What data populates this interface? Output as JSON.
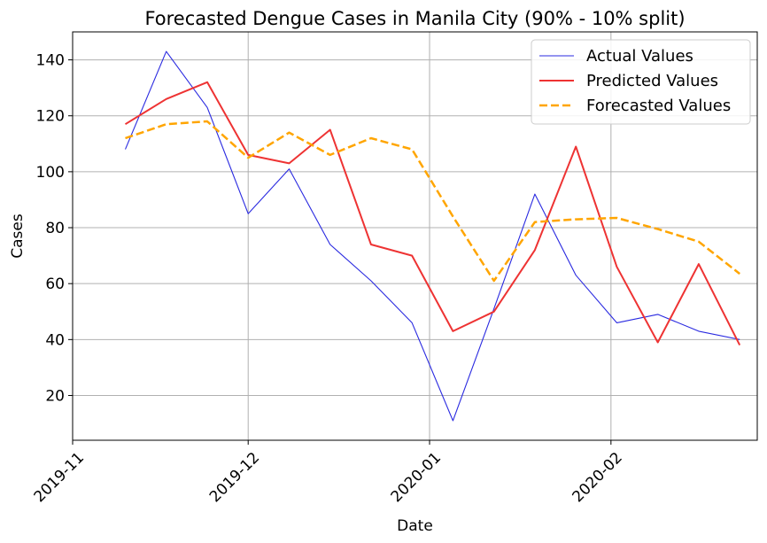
{
  "chart_data": {
    "type": "line",
    "title": "Forecasted Dengue Cases in Manila City (90% - 10% split)",
    "xlabel": "Date",
    "ylabel": "Cases",
    "x_range": [
      "2019-11-01",
      "2020-02-26"
    ],
    "ylim": [
      4,
      150
    ],
    "grid": true,
    "legend_position": "top-right",
    "x_ticks": [
      {
        "date": "2019-11-01",
        "label": "2019-11"
      },
      {
        "date": "2019-12-01",
        "label": "2019-12"
      },
      {
        "date": "2020-01-01",
        "label": "2020-01"
      },
      {
        "date": "2020-02-01",
        "label": "2020-02"
      }
    ],
    "y_ticks": [
      20,
      40,
      60,
      80,
      100,
      120,
      140
    ],
    "x": [
      "2019-11-10",
      "2019-11-17",
      "2019-11-24",
      "2019-12-01",
      "2019-12-08",
      "2019-12-15",
      "2019-12-22",
      "2019-12-29",
      "2020-01-05",
      "2020-01-12",
      "2020-01-19",
      "2020-01-26",
      "2020-02-02",
      "2020-02-09",
      "2020-02-16",
      "2020-02-23"
    ],
    "series": [
      {
        "name": "Actual Values",
        "color": "#2a2ae0",
        "style": "solid",
        "values": [
          108,
          143,
          123,
          85,
          101,
          74,
          61,
          46,
          11,
          51,
          92,
          63,
          46,
          49,
          43,
          40
        ]
      },
      {
        "name": "Predicted Values",
        "color": "#ee3333",
        "style": "solid",
        "values": [
          117,
          126,
          132,
          106,
          103,
          115,
          74,
          70,
          43,
          50,
          72,
          109,
          66,
          39,
          67,
          38
        ]
      },
      {
        "name": "Forecasted Values",
        "color": "#ffa500",
        "style": "dashed",
        "values": [
          112,
          117,
          118,
          105,
          114,
          106,
          112,
          108,
          84,
          61,
          82,
          83,
          83.5,
          79.5,
          75,
          63.5
        ]
      }
    ]
  }
}
